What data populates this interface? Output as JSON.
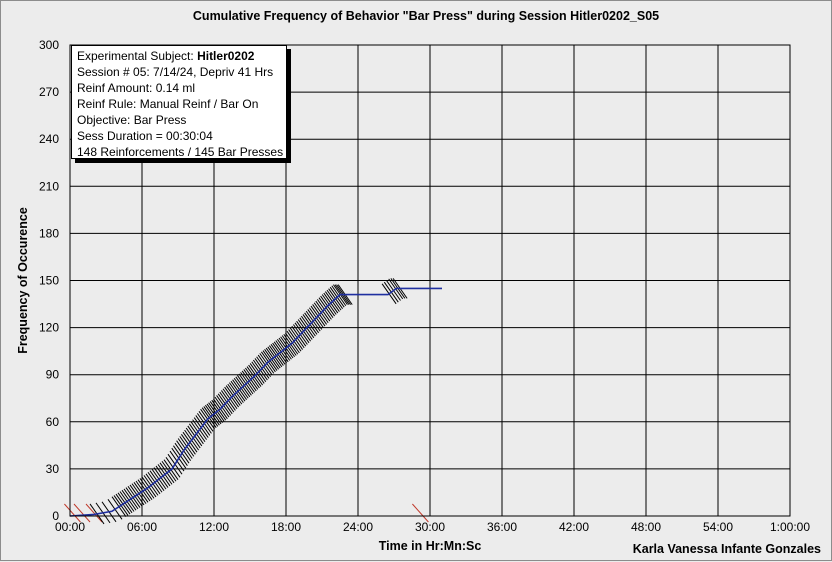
{
  "chart_data": {
    "type": "line",
    "title": "Cumulative Frequency of Behavior \"Bar Press\" during Session Hitler0202_S05",
    "xlabel": "Time in Hr:Mn:Sc",
    "ylabel": "Frequency of Occurence",
    "credit": "Karla Vanessa Infante Gonzales",
    "x_unit": "minutes",
    "xlim": [
      0,
      60
    ],
    "ylim": [
      0,
      300
    ],
    "x_ticks": [
      {
        "value": 0,
        "label": "00:00"
      },
      {
        "value": 6,
        "label": "06:00"
      },
      {
        "value": 12,
        "label": "12:00"
      },
      {
        "value": 18,
        "label": "18:00"
      },
      {
        "value": 24,
        "label": "24:00"
      },
      {
        "value": 30,
        "label": "30:00"
      },
      {
        "value": 36,
        "label": "36:00"
      },
      {
        "value": 42,
        "label": "42:00"
      },
      {
        "value": 48,
        "label": "48:00"
      },
      {
        "value": 54,
        "label": "54:00"
      },
      {
        "value": 60,
        "label": "1:00:00"
      }
    ],
    "y_ticks": [
      {
        "value": 0,
        "label": "0"
      },
      {
        "value": 30,
        "label": "30"
      },
      {
        "value": 60,
        "label": "60"
      },
      {
        "value": 90,
        "label": "90"
      },
      {
        "value": 120,
        "label": "120"
      },
      {
        "value": 150,
        "label": "150"
      },
      {
        "value": 180,
        "label": "180"
      },
      {
        "value": 210,
        "label": "210"
      },
      {
        "value": 240,
        "label": "240"
      },
      {
        "value": 270,
        "label": "270"
      },
      {
        "value": 300,
        "label": "300"
      }
    ],
    "grid": true,
    "series": [
      {
        "color": "#1f2fa0",
        "points": [
          [
            0,
            0
          ],
          [
            2,
            1
          ],
          [
            3.5,
            3
          ],
          [
            4.5,
            8
          ],
          [
            5.5,
            13
          ],
          [
            6.5,
            18
          ],
          [
            7.5,
            24
          ],
          [
            8.5,
            30
          ],
          [
            9.5,
            42
          ],
          [
            10.5,
            52
          ],
          [
            11.5,
            62
          ],
          [
            12.5,
            68
          ],
          [
            13.5,
            76
          ],
          [
            14.5,
            83
          ],
          [
            15.5,
            90
          ],
          [
            16.5,
            98
          ],
          [
            17.5,
            104
          ],
          [
            18.5,
            110
          ],
          [
            19.5,
            118
          ],
          [
            20.5,
            126
          ],
          [
            21.5,
            134
          ],
          [
            22.5,
            141
          ],
          [
            26.5,
            141
          ],
          [
            27.2,
            145
          ],
          [
            31,
            145
          ]
        ]
      }
    ],
    "reinforcement_marks": {
      "color": "#000000",
      "segments": [
        {
          "from": 2.0,
          "to": 4.0,
          "count": 4
        },
        {
          "from": 4.0,
          "to": 9.0,
          "count": 30
        },
        {
          "from": 9.0,
          "to": 15.0,
          "count": 45
        },
        {
          "from": 15.0,
          "to": 19.0,
          "count": 30
        },
        {
          "from": 19.0,
          "to": 23.0,
          "count": 30
        },
        {
          "from": 26.5,
          "to": 27.6,
          "count": 6
        }
      ]
    },
    "event_marks": {
      "color": "#c0392b",
      "times": [
        0.2,
        1.0,
        2.0,
        29.2
      ]
    }
  },
  "info_box": {
    "subject_label": "Experimental Subject: ",
    "subject_value": "Hitler0202",
    "session": "Session # 05: 7/14/24, Depriv 41 Hrs",
    "reinf_amount": "Reinf Amount: 0.14 ml",
    "reinf_rule": "Reinf Rule: Manual Reinf / Bar On",
    "objective": "Objective: Bar Press",
    "duration": "Sess Duration = 00:30:04",
    "summary": "148 Reinforcements / 145 Bar Presses"
  }
}
